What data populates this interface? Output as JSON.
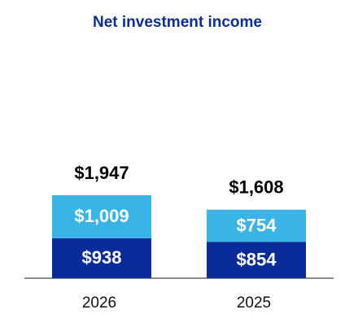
{
  "chart_data": {
    "type": "stacked-bar",
    "title": "Net investment income",
    "categories": [
      "2026",
      "2025"
    ],
    "series": [
      {
        "color": "#0a2c9a",
        "values": [
          938,
          854
        ],
        "value_labels": [
          "$938",
          "$854"
        ]
      },
      {
        "color": "#3ab4e6",
        "values": [
          1009,
          754
        ],
        "value_labels": [
          "$1,009",
          "$754"
        ]
      }
    ],
    "totals": [
      1947,
      1608
    ],
    "total_labels": [
      "$1,947",
      "$1,608"
    ]
  }
}
